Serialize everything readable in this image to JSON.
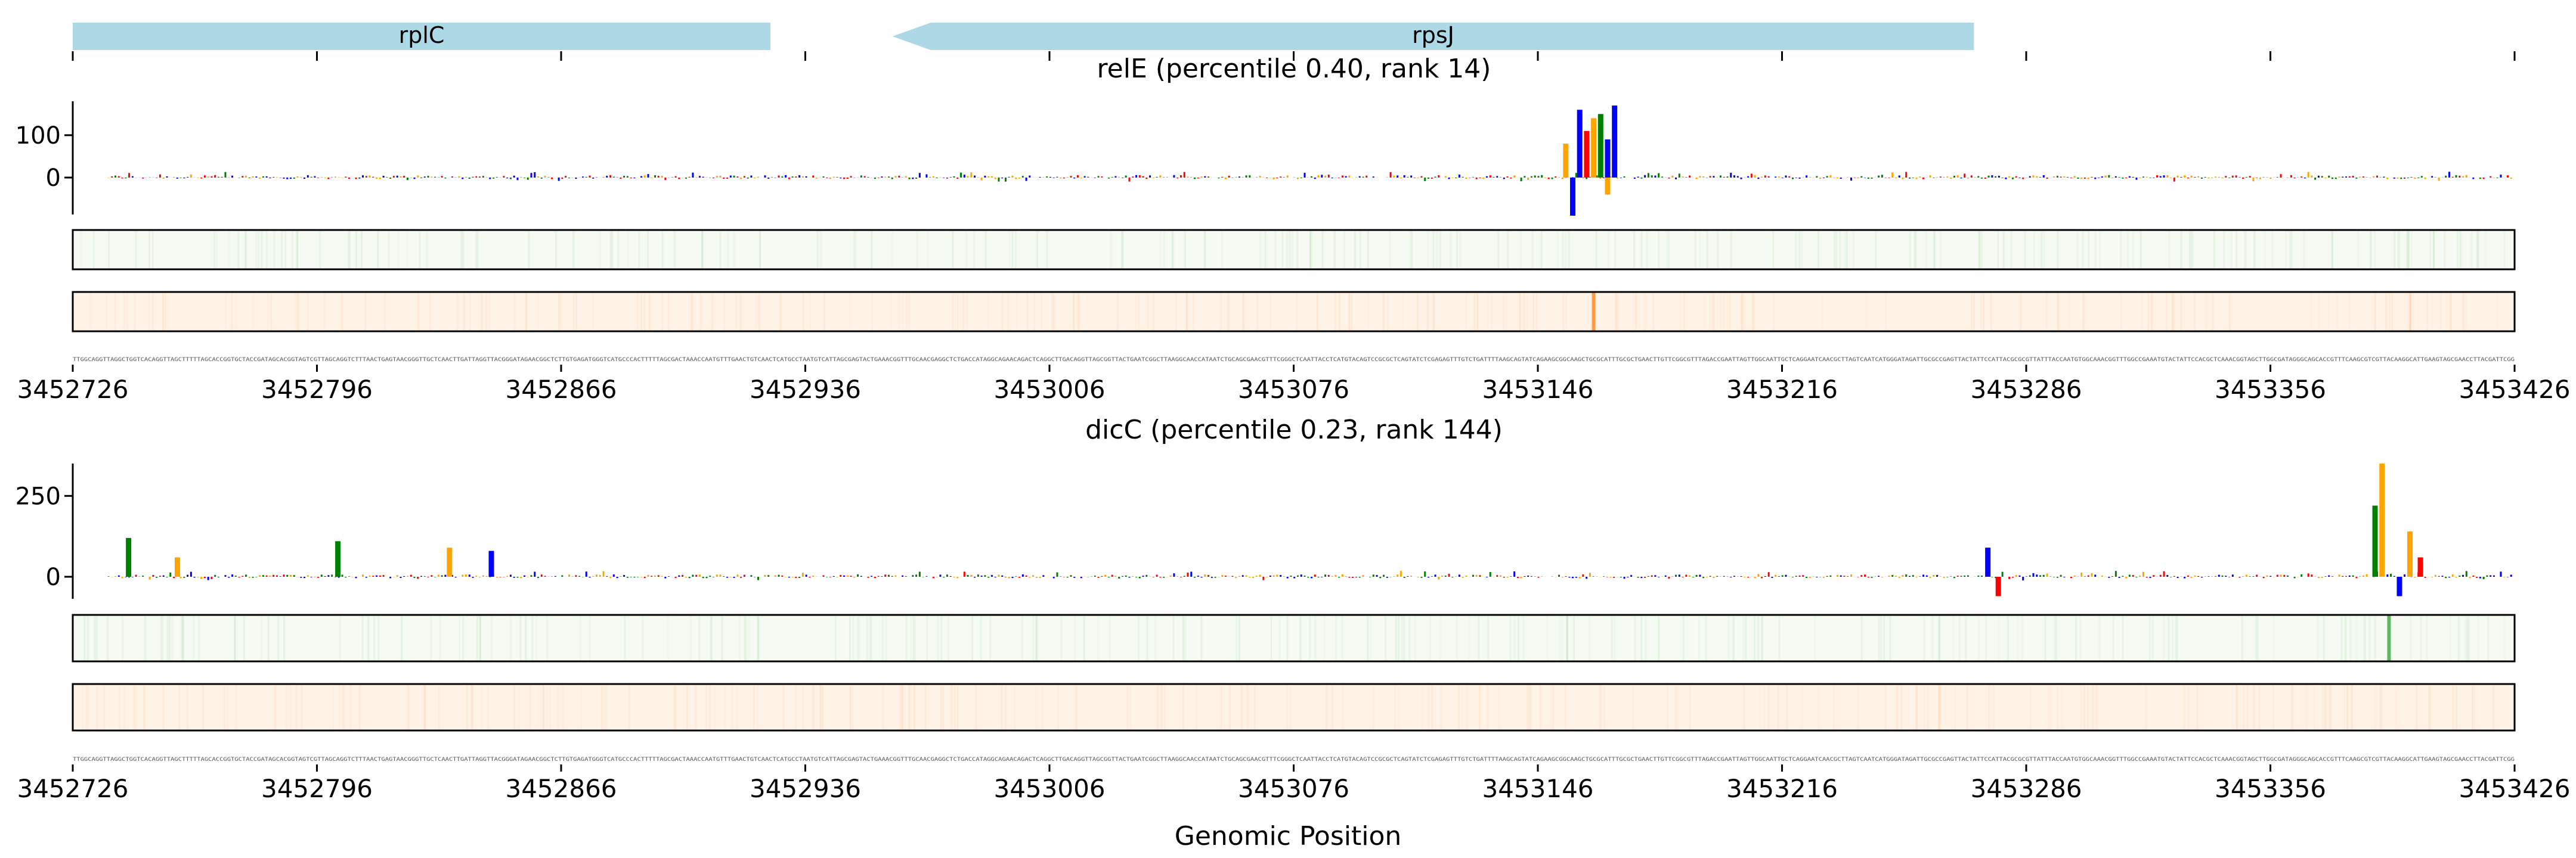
{
  "chart_data": [
    {
      "type": "gene-track",
      "xlim": [
        3452726,
        3453426
      ],
      "genes": [
        {
          "name": "rplC",
          "start": 3452726,
          "end": 3452926,
          "strand": "+",
          "color": "#add8e6"
        },
        {
          "name": "rpsJ",
          "start": 3452961,
          "end": 3453271,
          "strand": "-",
          "color": "#add8e6"
        }
      ],
      "ticks": [
        3452726,
        3452796,
        3452866,
        3452936,
        3453006,
        3453076,
        3453146,
        3453216,
        3453286,
        3453356,
        3453426
      ]
    },
    {
      "type": "sequence-logo",
      "title": "relE (percentile 0.40, rank 14)",
      "xlim": [
        3452726,
        3453426
      ],
      "ylim": [
        -50,
        180
      ],
      "yticks": [
        0,
        100
      ],
      "xticks": [
        3452726,
        3452796,
        3452866,
        3452936,
        3453006,
        3453076,
        3453146,
        3453216,
        3453286,
        3453356,
        3453426
      ],
      "xlabel": "",
      "peaks": [
        {
          "x": 3453154,
          "value": 80,
          "color": "#ffa500"
        },
        {
          "x": 3453156,
          "value": -90,
          "color": "#0000ff"
        },
        {
          "x": 3453158,
          "value": 160,
          "color": "#0000ff"
        },
        {
          "x": 3453160,
          "value": 110,
          "color": "#ff0000"
        },
        {
          "x": 3453162,
          "value": 140,
          "color": "#ffa500"
        },
        {
          "x": 3453164,
          "value": 150,
          "color": "#008000"
        },
        {
          "x": 3453166,
          "value": 90,
          "color": "#0000ff"
        },
        {
          "x": 3453168,
          "value": 170,
          "color": "#0000ff"
        },
        {
          "x": 3453166,
          "value": -40,
          "color": "#ffa500"
        }
      ],
      "heatmap_tracks": [
        {
          "color": "#2ca02c",
          "highlights": []
        },
        {
          "color": "#ff7f0e",
          "highlights": [
            3453162
          ]
        }
      ],
      "colors": {
        "A": "#008000",
        "C": "#0000ff",
        "G": "#ffa500",
        "T": "#ff0000"
      }
    },
    {
      "type": "sequence-logo",
      "title": "dicC (percentile 0.23, rank 144)",
      "xlim": [
        3452726,
        3453426
      ],
      "ylim": [
        -50,
        350
      ],
      "yticks": [
        0,
        250
      ],
      "xticks": [
        3452726,
        3452796,
        3452866,
        3452936,
        3453006,
        3453076,
        3453146,
        3453216,
        3453286,
        3453356,
        3453426
      ],
      "xlabel": "Genomic Position",
      "peaks": [
        {
          "x": 3452742,
          "value": 120,
          "color": "#008000"
        },
        {
          "x": 3452756,
          "value": 60,
          "color": "#ffa500"
        },
        {
          "x": 3452802,
          "value": 110,
          "color": "#008000"
        },
        {
          "x": 3452834,
          "value": 90,
          "color": "#ffa500"
        },
        {
          "x": 3452846,
          "value": 80,
          "color": "#0000ff"
        },
        {
          "x": 3453275,
          "value": 90,
          "color": "#0000ff"
        },
        {
          "x": 3453278,
          "value": -60,
          "color": "#ff0000"
        },
        {
          "x": 3453386,
          "value": 220,
          "color": "#008000"
        },
        {
          "x": 3453388,
          "value": 350,
          "color": "#ffa500"
        },
        {
          "x": 3453393,
          "value": -60,
          "color": "#0000ff"
        },
        {
          "x": 3453396,
          "value": 140,
          "color": "#ffa500"
        },
        {
          "x": 3453399,
          "value": 60,
          "color": "#ff0000"
        }
      ],
      "heatmap_tracks": [
        {
          "color": "#2ca02c",
          "highlights": [
            3453390
          ]
        },
        {
          "color": "#ff7f0e",
          "highlights": []
        }
      ],
      "colors": {
        "A": "#008000",
        "C": "#0000ff",
        "G": "#ffa500",
        "T": "#ff0000"
      }
    }
  ],
  "sequence": "TTGGCAGGTTAGGCTGGTCACAGGTTAGCTTTTTAGCACCGGTGCTACCGATAGCACGGTAGTCGTTAGCAGGTCTTTAACTGAGTAACGGGTTGCTCAACTTGATTAGGTTACGGGATAGAACGGCTCTTGTGAGATGGGTCATGCCCACTTTTTAGCGACTAAACCAATGTTTGAACTGTCAACTCATGCCTAATGTCATTAGCGAGTACTGAAACGGTTTGCAACGAGGCTCTGACCATAGGCAGAACAGACTCAGGCTTGACAGGTTAGCGGTTACTGAATCGGCTTAAGGCAACCATAATCTGCAGCGAACGTTTCGGGCTCAATTACCTCATGTACAGTCCGCGCTCAGTATCTCGAGAGTTTGTCTGATTTTAAGCAGTATCAGAAGCGGCAAGCTGCGCATTTGCGCTGAACTTGTTCGGCGTTTAGACCGAATTAGTTGGCAATTGCTCAGGAATCAACGCTTAGTCAATCATGGGATAGATTGCGCCGAGTTACTATTCCATTACGCGCGTTATTTACCAATGTGGCAAACGGTTTGGCCGAAATGTACTATTCCACGCTCAAACGGTAGCTTGGCGATAGGGCAGCACCGTTTCAAGCGTCGTTACAAGGCATTGAAGTAGCGAACCTTACGATTCGG"
}
